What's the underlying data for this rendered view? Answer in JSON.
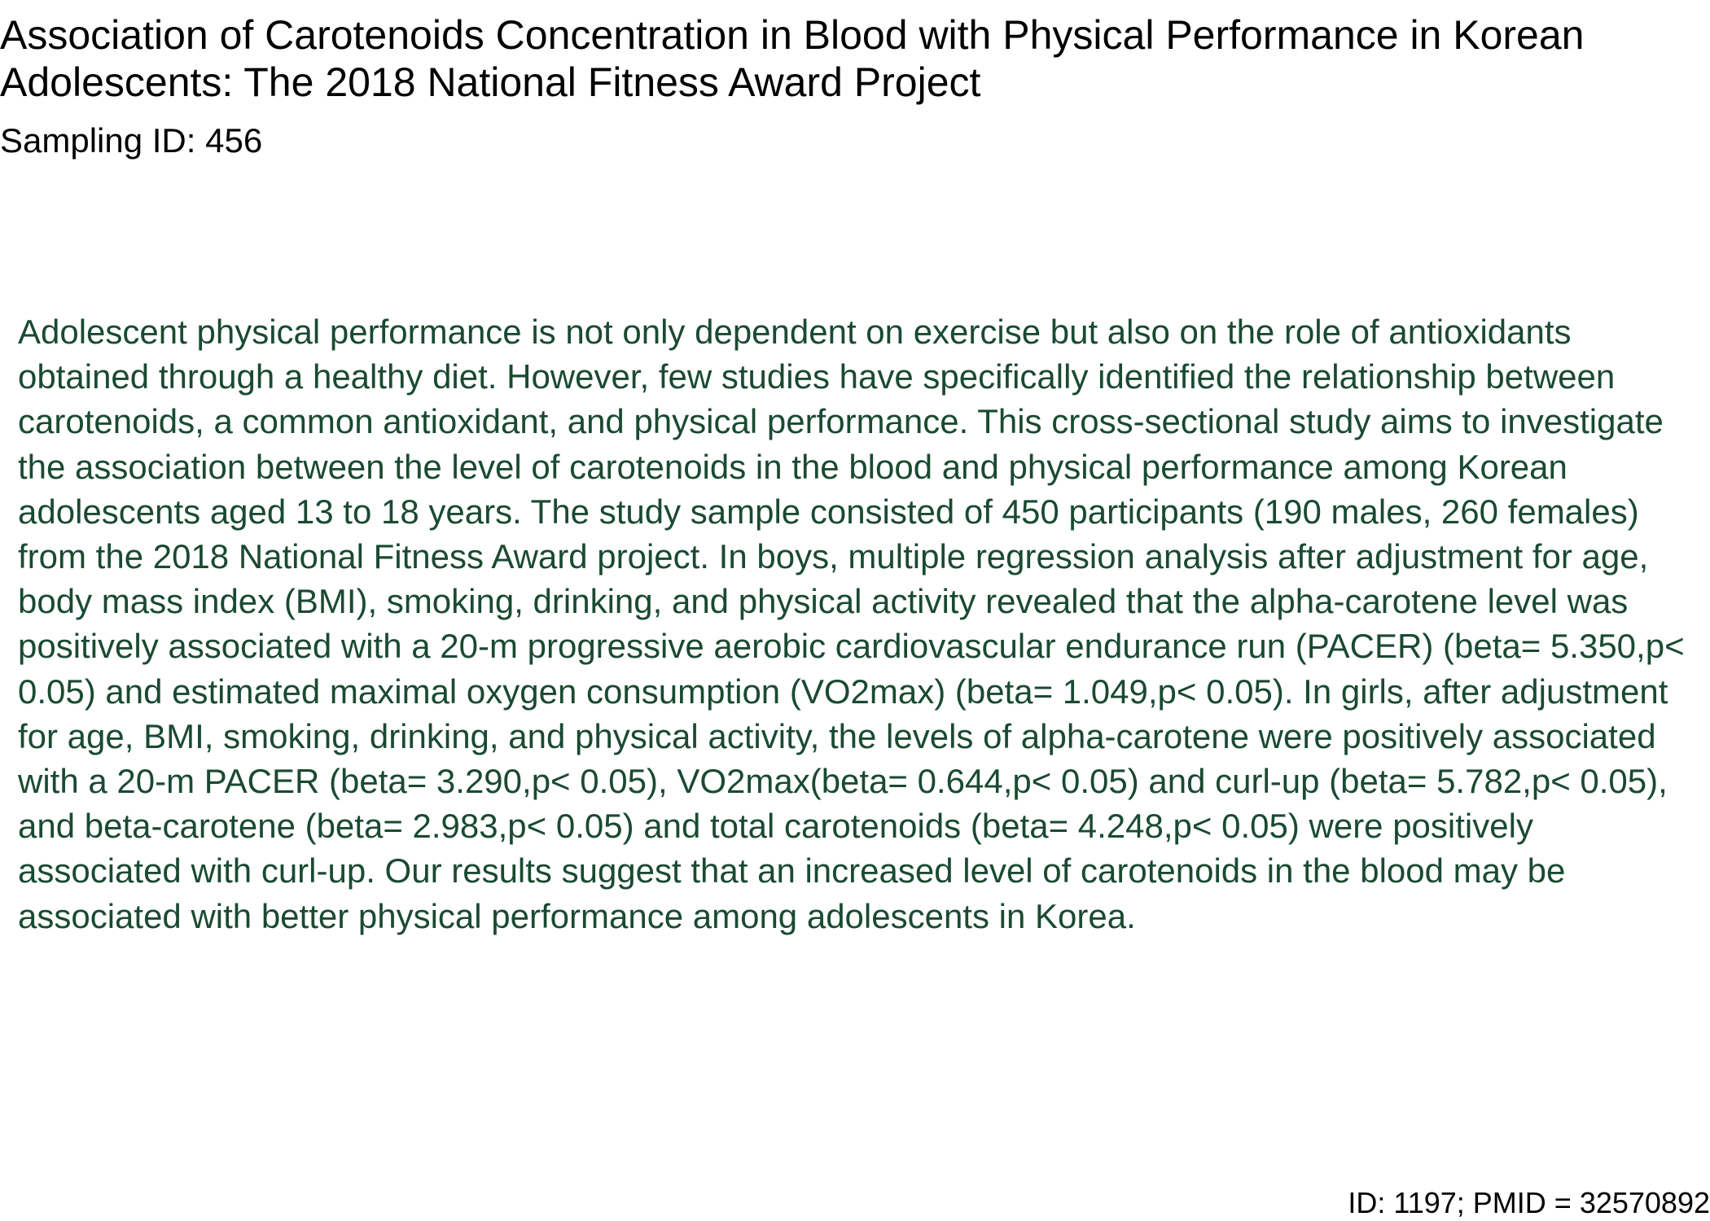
{
  "document": {
    "title": "Association of Carotenoids Concentration in Blood with Physical Performance in Korean Adolescents: The 2018 National Fitness Award Project",
    "sampling_id": "Sampling ID: 456",
    "abstract": "Adolescent physical performance is not only dependent on exercise but also on the role of antioxidants obtained through a healthy diet. However, few studies have specifically identified the relationship between carotenoids, a common antioxidant, and physical performance. This cross-sectional study aims to investigate the association between the level of carotenoids in the blood and physical performance among Korean adolescents aged 13 to 18 years. The study sample consisted of 450 participants (190 males, 260 females) from the 2018 National Fitness Award project. In boys, multiple regression analysis after adjustment for age, body mass index (BMI), smoking, drinking, and physical activity revealed that the alpha-carotene level was positively associated with a 20-m progressive aerobic cardiovascular endurance run (PACER) (beta= 5.350,p< 0.05) and estimated maximal oxygen consumption (VO2max) (beta= 1.049,p< 0.05). In girls, after adjustment for age, BMI, smoking, drinking, and physical activity, the levels of alpha-carotene were positively associated with a 20-m PACER (beta= 3.290,p< 0.05), VO2max(beta= 0.644,p< 0.05) and curl-up (beta= 5.782,p< 0.05), and beta-carotene (beta= 2.983,p< 0.05) and total carotenoids (beta= 4.248,p< 0.05) were positively associated with curl-up. Our results suggest that an increased level of carotenoids in the blood may be associated with better physical performance among adolescents in Korea.",
    "footer_id": "ID: 1197; PMID = 32570892"
  },
  "colors": {
    "title_text": "#000000",
    "abstract_text": "#1a4a32",
    "background": "#ffffff"
  }
}
